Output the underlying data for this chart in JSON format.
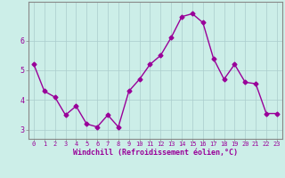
{
  "x": [
    0,
    1,
    2,
    3,
    4,
    5,
    6,
    7,
    8,
    9,
    10,
    11,
    12,
    13,
    14,
    15,
    16,
    17,
    18,
    19,
    20,
    21,
    22,
    23
  ],
  "y": [
    5.2,
    4.3,
    4.1,
    3.5,
    3.8,
    3.2,
    3.1,
    3.5,
    3.1,
    4.3,
    4.7,
    5.2,
    5.5,
    6.1,
    6.8,
    6.9,
    6.6,
    5.4,
    4.7,
    5.2,
    4.6,
    4.55,
    3.55,
    3.55
  ],
  "line_color": "#990099",
  "marker": "D",
  "marker_size": 2.5,
  "bg_color": "#cceee8",
  "grid_color": "#aacccc",
  "xlabel": "Windchill (Refroidissement éolien,°C)",
  "xlabel_color": "#990099",
  "tick_color": "#990099",
  "spine_color": "#888888",
  "ylim": [
    2.7,
    7.3
  ],
  "xlim": [
    -0.5,
    23.5
  ],
  "yticks": [
    3,
    4,
    5,
    6
  ],
  "xticks": [
    0,
    1,
    2,
    3,
    4,
    5,
    6,
    7,
    8,
    9,
    10,
    11,
    12,
    13,
    14,
    15,
    16,
    17,
    18,
    19,
    20,
    21,
    22,
    23
  ],
  "tick_fontsize": 5,
  "xlabel_fontsize": 6,
  "ytick_fontsize": 6,
  "linewidth": 1.0
}
